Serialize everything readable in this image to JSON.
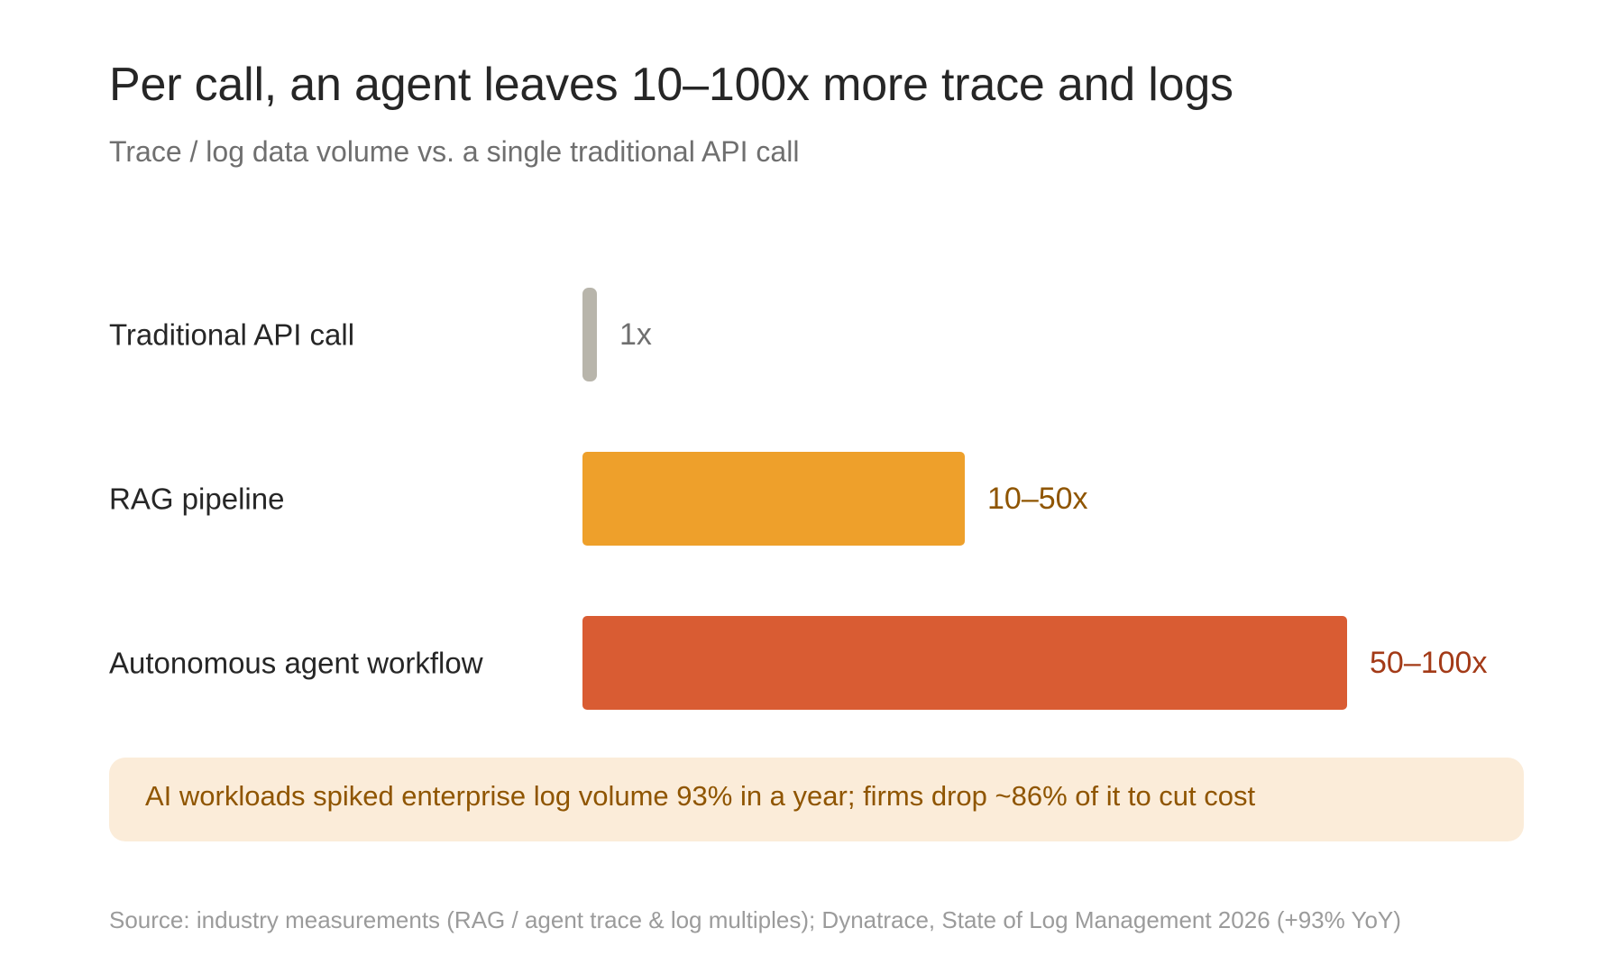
{
  "header": {
    "title": "Per call, an agent leaves 10–100x more trace and logs",
    "subtitle": "Trace / log data volume vs. a single traditional API call"
  },
  "chart_data": {
    "type": "bar",
    "orientation": "horizontal",
    "categories": [
      "Traditional API call",
      "RAG pipeline",
      "Autonomous agent workflow"
    ],
    "values": [
      1,
      50,
      100
    ],
    "value_labels": [
      "1x",
      "10–50x",
      "50–100x"
    ],
    "xlim": [
      0,
      100
    ],
    "grid": false,
    "legend": "none",
    "colors": {
      "bars": [
        "#b8b5ab",
        "#eea02b",
        "#d95c33"
      ],
      "value_labels": [
        "#6f6f6f",
        "#8f5500",
        "#a33a17"
      ],
      "category_labels": "#262626"
    }
  },
  "note": {
    "text": "AI workloads spiked enterprise log volume 93% in a year; firms drop ~86% of it to cut cost"
  },
  "footer": {
    "source": "Source: industry measurements (RAG / agent trace & log multiples); Dynatrace, State of Log Management 2026 (+93% YoY)"
  }
}
